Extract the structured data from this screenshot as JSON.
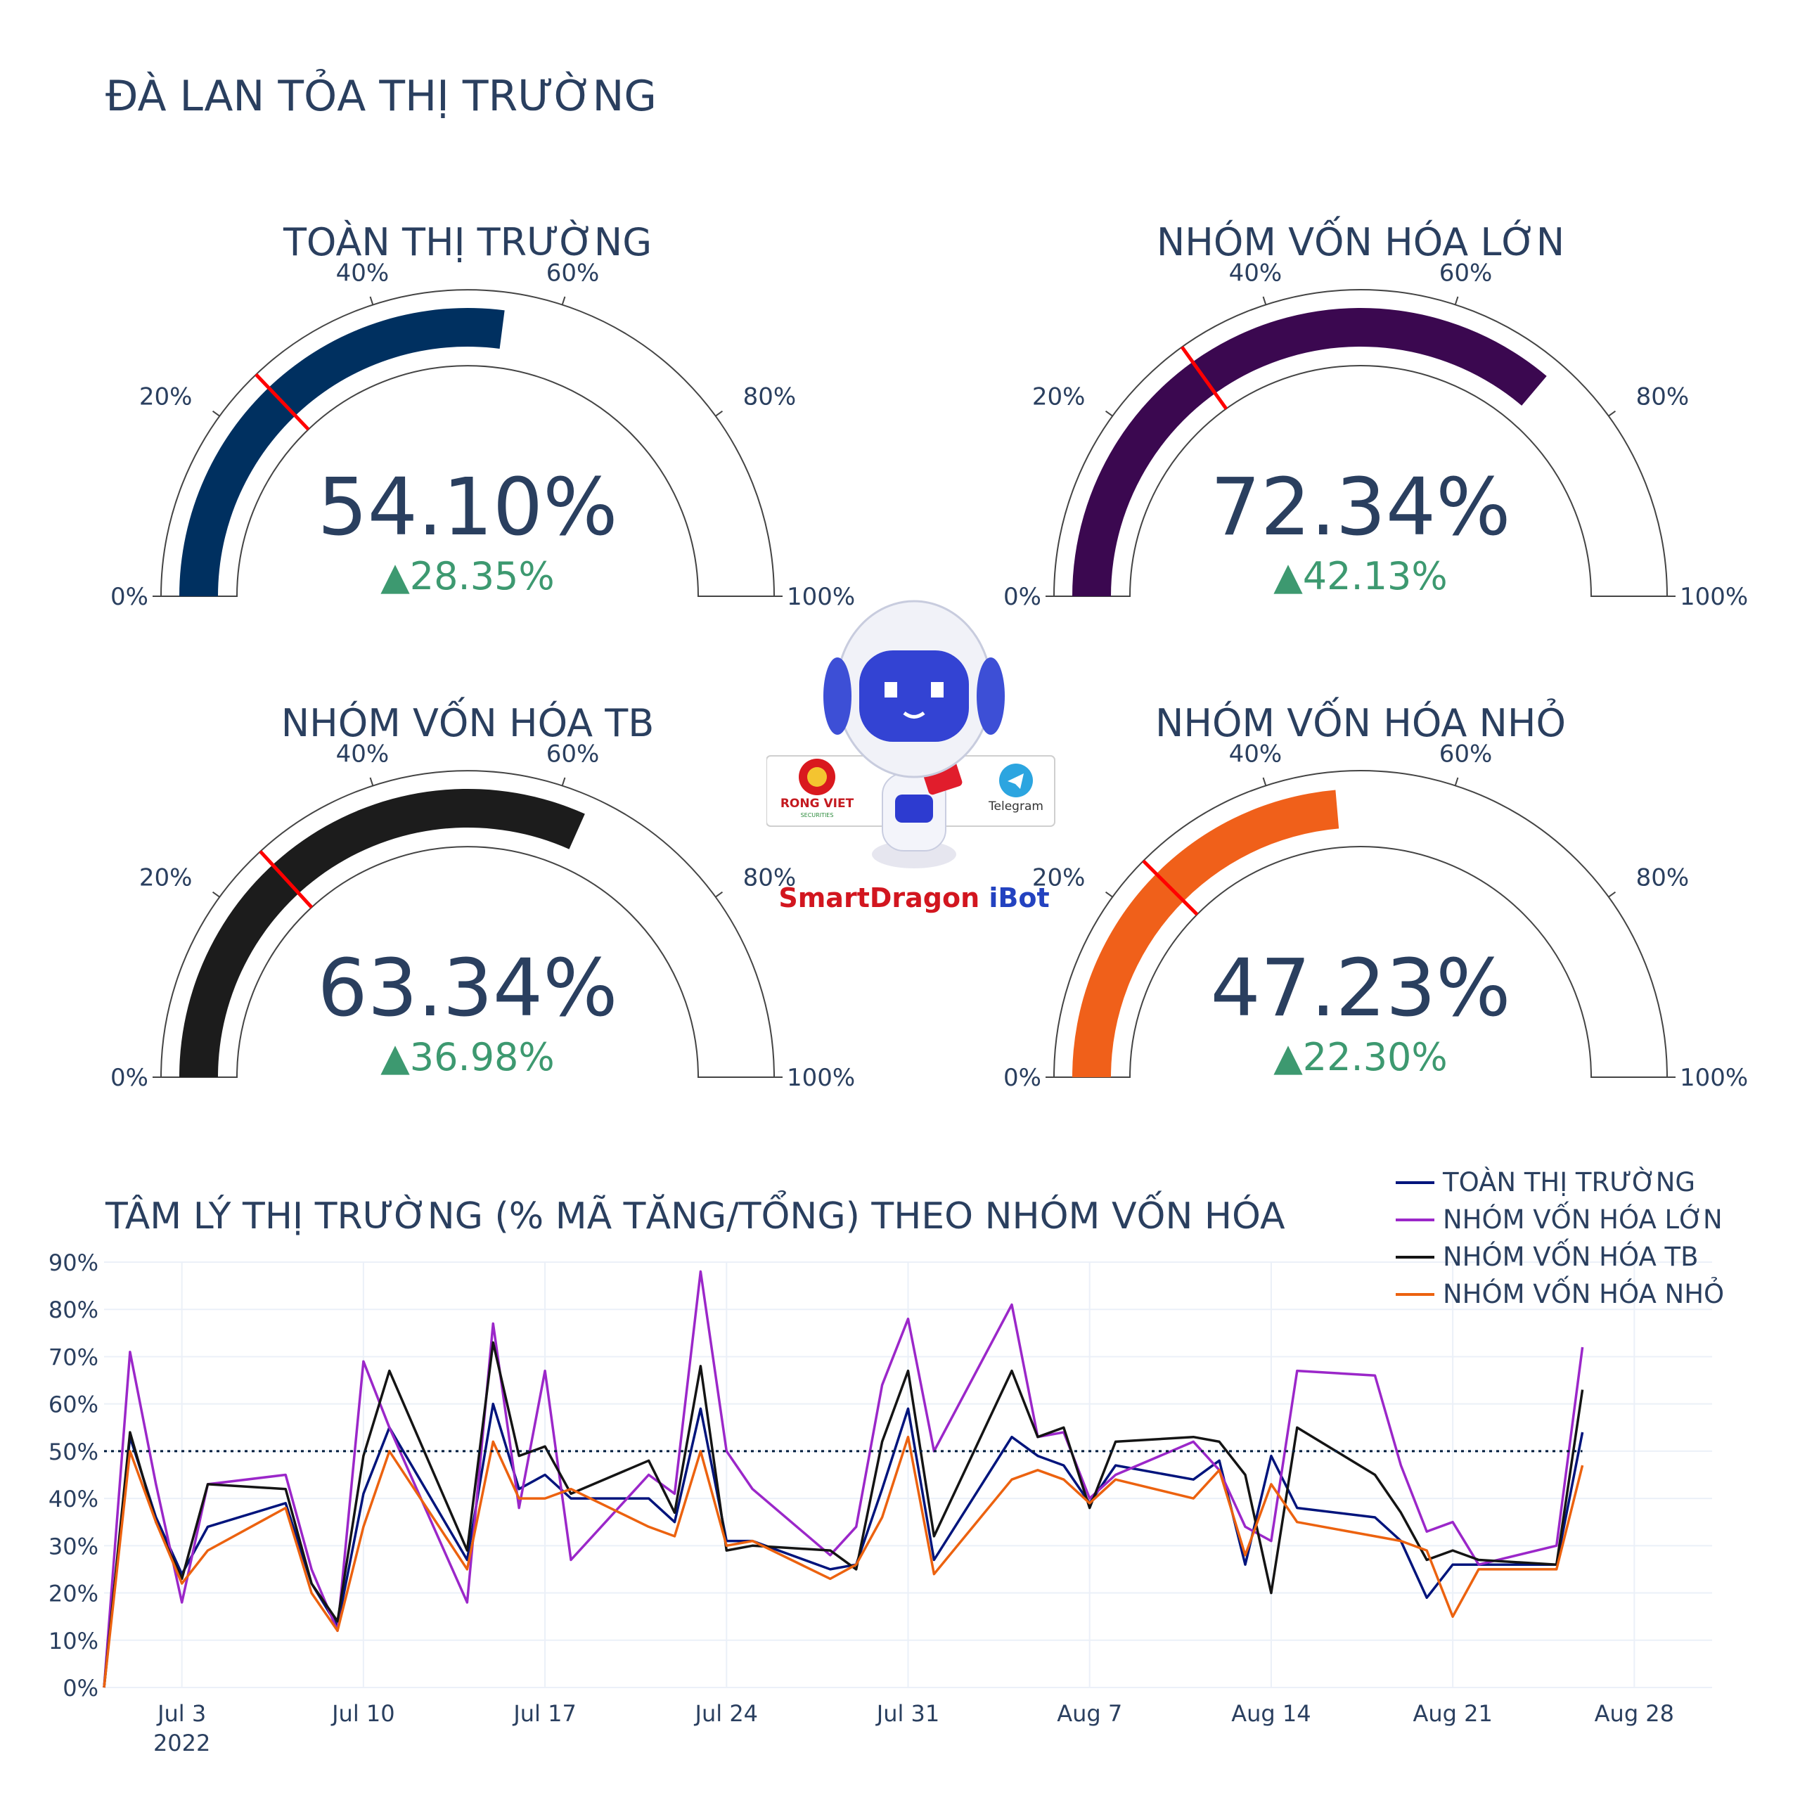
{
  "page": {
    "title": "ĐÀ LAN TỎA THỊ TRƯỜNG"
  },
  "gauges": [
    {
      "title": "TOÀN THỊ TRƯỜNG",
      "value": 54.1,
      "value_label": "54.10%",
      "delta_label": "▲28.35%",
      "reference": 25.75,
      "color": "#003060"
    },
    {
      "title": "NHÓM VỐN HÓA LỚN",
      "value": 72.34,
      "value_label": "72.34%",
      "delta_label": "▲42.13%",
      "reference": 30.21,
      "color": "#3b0850"
    },
    {
      "title": "NHÓM VỐN HÓA TB",
      "value": 63.34,
      "value_label": "63.34%",
      "delta_label": "▲36.98%",
      "reference": 26.36,
      "color": "#1c1c1c"
    },
    {
      "title": "NHÓM VỐN HÓA NHỎ",
      "value": 47.23,
      "value_label": "47.23%",
      "delta_label": "▲22.30%",
      "reference": 24.93,
      "color": "#f0601a"
    }
  ],
  "gauge_ticks": [
    "0%",
    "20%",
    "40%",
    "60%",
    "80%",
    "100%"
  ],
  "gauge_tick_values": [
    0,
    20,
    40,
    60,
    80,
    100
  ],
  "mascot": {
    "brand_left": "RONG VIET",
    "brand_left_sub": "SECURITIES",
    "brand_right": "Telegram",
    "logo_part1": "Smart",
    "logo_part2": "Dragon",
    "logo_part3": " iBot"
  },
  "chart_data": {
    "type": "line",
    "title": "TÂM LÝ THỊ TRƯỜNG (% MÃ TĂNG/TỔNG) THEO NHÓM VỐN HÓA",
    "xlabel": "",
    "ylabel": "",
    "x_tick_labels": [
      "Jul 3",
      "Jul 10",
      "Jul 17",
      "Jul 24",
      "Jul 31",
      "Aug 7",
      "Aug 14",
      "Aug 21",
      "Aug 28"
    ],
    "x_tick_days": [
      3,
      10,
      17,
      24,
      31,
      38,
      45,
      52,
      59
    ],
    "x_year_label": "2022",
    "xlim": [
      "2022-06-27",
      "2022-08-28"
    ],
    "ylim": [
      0,
      90
    ],
    "y_ticks": [
      0,
      10,
      20,
      30,
      40,
      50,
      60,
      70,
      80,
      90
    ],
    "y_tick_labels": [
      "0%",
      "10%",
      "20%",
      "30%",
      "40%",
      "50%",
      "60%",
      "70%",
      "80%",
      "90%"
    ],
    "reference_line": 50,
    "grid": true,
    "legend_position": "top-right",
    "x": [
      "2022-06-27",
      "2022-06-28",
      "2022-06-29",
      "2022-06-30",
      "2022-07-01",
      "2022-07-04",
      "2022-07-05",
      "2022-07-06",
      "2022-07-07",
      "2022-07-08",
      "2022-07-11",
      "2022-07-12",
      "2022-07-13",
      "2022-07-14",
      "2022-07-15",
      "2022-07-18",
      "2022-07-19",
      "2022-07-20",
      "2022-07-21",
      "2022-07-22",
      "2022-07-25",
      "2022-07-26",
      "2022-07-27",
      "2022-07-28",
      "2022-07-29",
      "2022-08-01",
      "2022-08-02",
      "2022-08-03",
      "2022-08-04",
      "2022-08-05",
      "2022-08-08",
      "2022-08-09",
      "2022-08-10",
      "2022-08-11",
      "2022-08-12",
      "2022-08-15",
      "2022-08-16",
      "2022-08-17",
      "2022-08-18",
      "2022-08-19",
      "2022-08-22",
      "2022-08-23"
    ],
    "series": [
      {
        "name": "TOÀN THỊ TRƯỜNG",
        "color": "#00147c",
        "values": [
          0,
          53,
          36,
          24,
          34,
          39,
          22,
          13,
          41,
          55,
          27,
          60,
          42,
          45,
          40,
          40,
          35,
          59,
          31,
          31,
          25,
          26,
          42,
          59,
          27,
          53,
          49,
          47,
          39,
          47,
          44,
          48,
          26,
          49,
          38,
          36,
          31,
          19,
          26,
          26,
          26,
          54
        ]
      },
      {
        "name": "NHÓM VỐN HÓA LỚN",
        "color": "#9b27c9",
        "values": [
          0,
          71,
          43,
          18,
          43,
          45,
          25,
          12,
          69,
          55,
          18,
          77,
          38,
          67,
          27,
          45,
          41,
          88,
          50,
          42,
          28,
          34,
          64,
          78,
          50,
          81,
          53,
          54,
          40,
          45,
          52,
          46,
          34,
          31,
          67,
          66,
          47,
          33,
          35,
          26,
          30,
          72
        ]
      },
      {
        "name": "NHÓM VỐN HÓA TB",
        "color": "#141414",
        "values": [
          0,
          54,
          35,
          23,
          43,
          42,
          22,
          14,
          49,
          67,
          29,
          73,
          49,
          51,
          41,
          48,
          37,
          68,
          29,
          30,
          29,
          25,
          52,
          67,
          32,
          67,
          53,
          55,
          38,
          52,
          53,
          52,
          45,
          20,
          55,
          45,
          37,
          27,
          29,
          27,
          26,
          63
        ]
      },
      {
        "name": "NHÓM VỐN HÓA NHỎ",
        "color": "#ec620f",
        "values": [
          0,
          50,
          35,
          22,
          29,
          38,
          20,
          12,
          34,
          50,
          25,
          52,
          40,
          40,
          42,
          34,
          32,
          50,
          30,
          31,
          23,
          26,
          36,
          53,
          24,
          44,
          46,
          44,
          39,
          44,
          40,
          46,
          28,
          43,
          35,
          32,
          31,
          29,
          15,
          25,
          25,
          47
        ]
      }
    ]
  }
}
